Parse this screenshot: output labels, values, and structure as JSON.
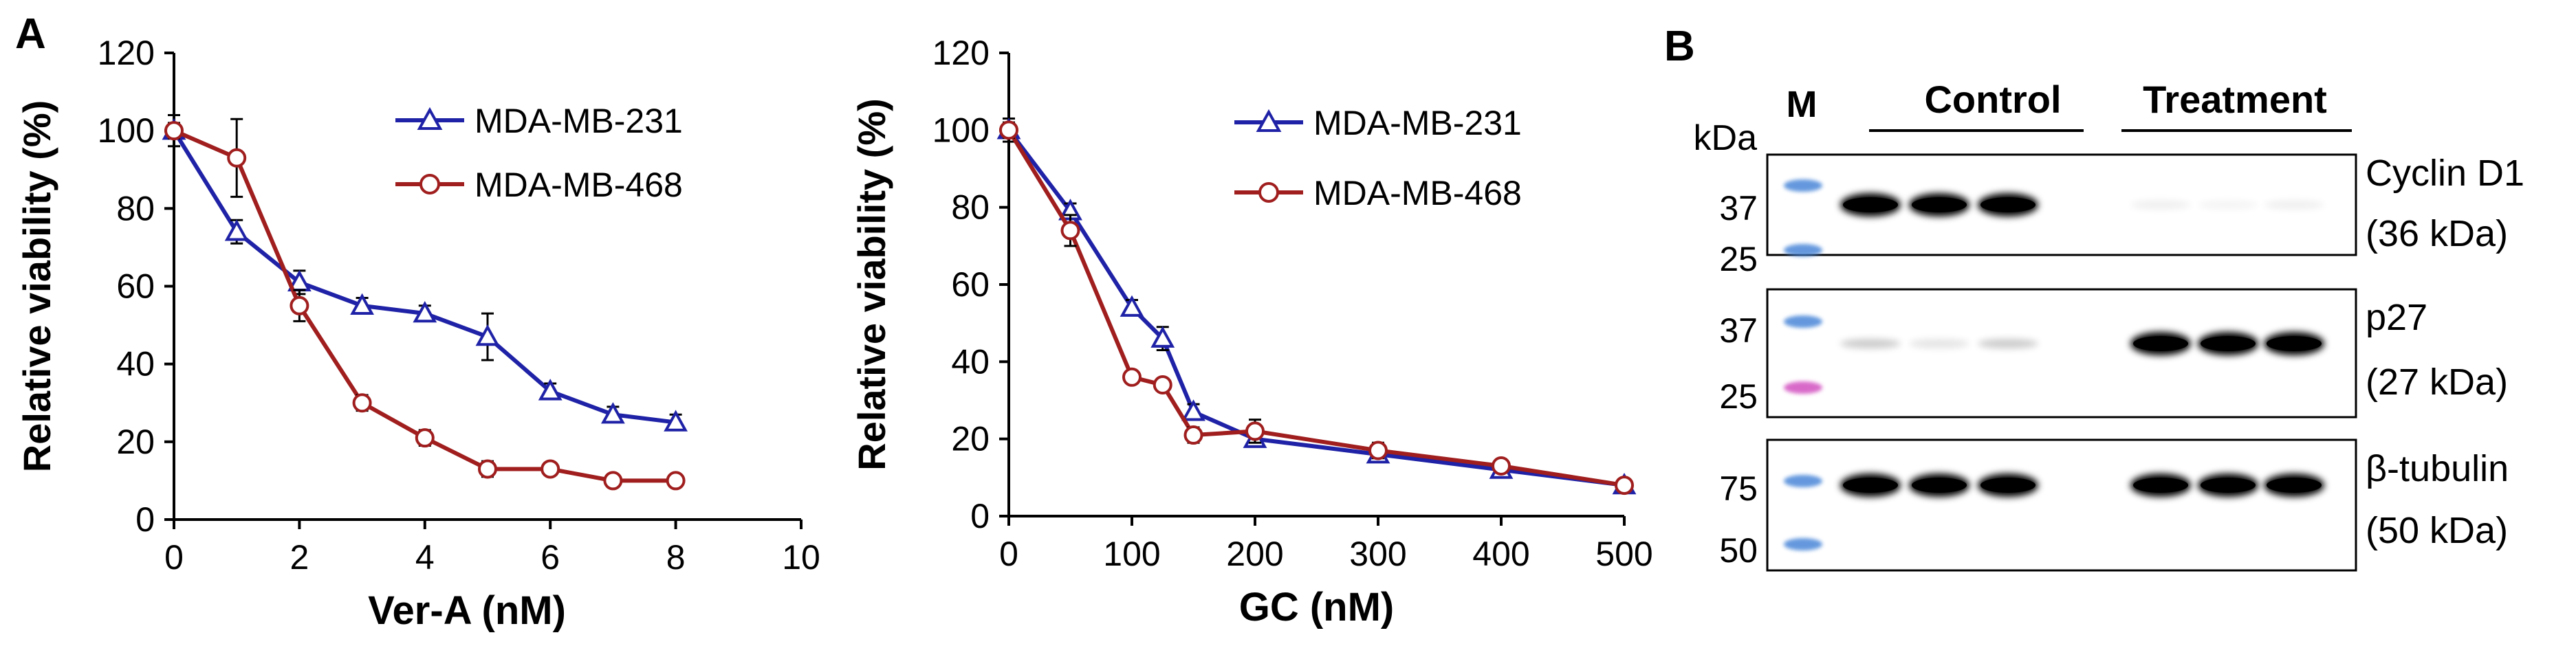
{
  "panel_labels": {
    "a": "A",
    "b": "B"
  },
  "colors": {
    "blue": "#1f22a6",
    "red": "#a01e1e",
    "axis": "#000000"
  },
  "chart_data": [
    {
      "type": "line",
      "ylabel": "Relative viability (%)",
      "xlabel": "Ver-A (nM)",
      "xlim": [
        0,
        10
      ],
      "ylim": [
        0,
        120
      ],
      "xticks": [
        0,
        2,
        4,
        6,
        8,
        10
      ],
      "yticks": [
        0,
        20,
        40,
        60,
        80,
        100,
        120
      ],
      "legend_position": "top-right",
      "series": [
        {
          "name": "MDA-MB-231",
          "marker": "triangle",
          "color": "#1f22a6",
          "x": [
            0,
            1,
            2,
            3,
            4,
            5,
            6,
            7,
            8
          ],
          "values": [
            100,
            74,
            61,
            55,
            53,
            47,
            33,
            27,
            25
          ],
          "errors": [
            4,
            3,
            3,
            2,
            2,
            6,
            2,
            2,
            2
          ]
        },
        {
          "name": "MDA-MB-468",
          "marker": "circle",
          "color": "#a01e1e",
          "x": [
            0,
            1,
            2,
            3,
            4,
            5,
            6,
            7,
            8
          ],
          "values": [
            100,
            93,
            55,
            30,
            21,
            13,
            13,
            10,
            10
          ],
          "errors": [
            2,
            10,
            4,
            2,
            2,
            2,
            1,
            1,
            1
          ]
        }
      ]
    },
    {
      "type": "line",
      "ylabel": "Relative viability (%)",
      "xlabel": "GC (nM)",
      "xlim": [
        0,
        500
      ],
      "ylim": [
        0,
        120
      ],
      "xticks": [
        0,
        100,
        200,
        300,
        400,
        500
      ],
      "yticks": [
        0,
        20,
        40,
        60,
        80,
        100,
        120
      ],
      "legend_position": "top-right",
      "series": [
        {
          "name": "MDA-MB-231",
          "marker": "triangle",
          "color": "#1f22a6",
          "x": [
            0,
            50,
            100,
            125,
            150,
            200,
            300,
            400,
            500
          ],
          "values": [
            100,
            79,
            54,
            46,
            27,
            20,
            16,
            12,
            8
          ],
          "errors": [
            3,
            2,
            2,
            3,
            2,
            2,
            2,
            2,
            1
          ]
        },
        {
          "name": "MDA-MB-468",
          "marker": "circle",
          "color": "#a01e1e",
          "x": [
            0,
            50,
            100,
            125,
            150,
            200,
            300,
            400,
            500
          ],
          "values": [
            100,
            74,
            36,
            34,
            21,
            22,
            17,
            13,
            8
          ],
          "errors": [
            2,
            4,
            1,
            1,
            2,
            3,
            2,
            1,
            1
          ]
        }
      ]
    }
  ],
  "blot": {
    "marker_lane": "M",
    "kda_label": "kDa",
    "groups": [
      "Control",
      "Treatment"
    ],
    "panels": [
      {
        "name": "Cyclin D1",
        "size": "(36 kDa)",
        "ladder": [
          "37",
          "25"
        ],
        "band_intensity": [
          1,
          1,
          1,
          0.06,
          0.04,
          0.06
        ]
      },
      {
        "name": "p27",
        "size": "(27 kDa)",
        "ladder": [
          "37",
          "25"
        ],
        "band_intensity": [
          0.2,
          0.1,
          0.2,
          1,
          1,
          1
        ]
      },
      {
        "name": "β-tubulin",
        "size": "(50 kDa)",
        "ladder": [
          "75",
          "50"
        ],
        "band_intensity": [
          1,
          1,
          1,
          1,
          1,
          1
        ]
      }
    ]
  }
}
